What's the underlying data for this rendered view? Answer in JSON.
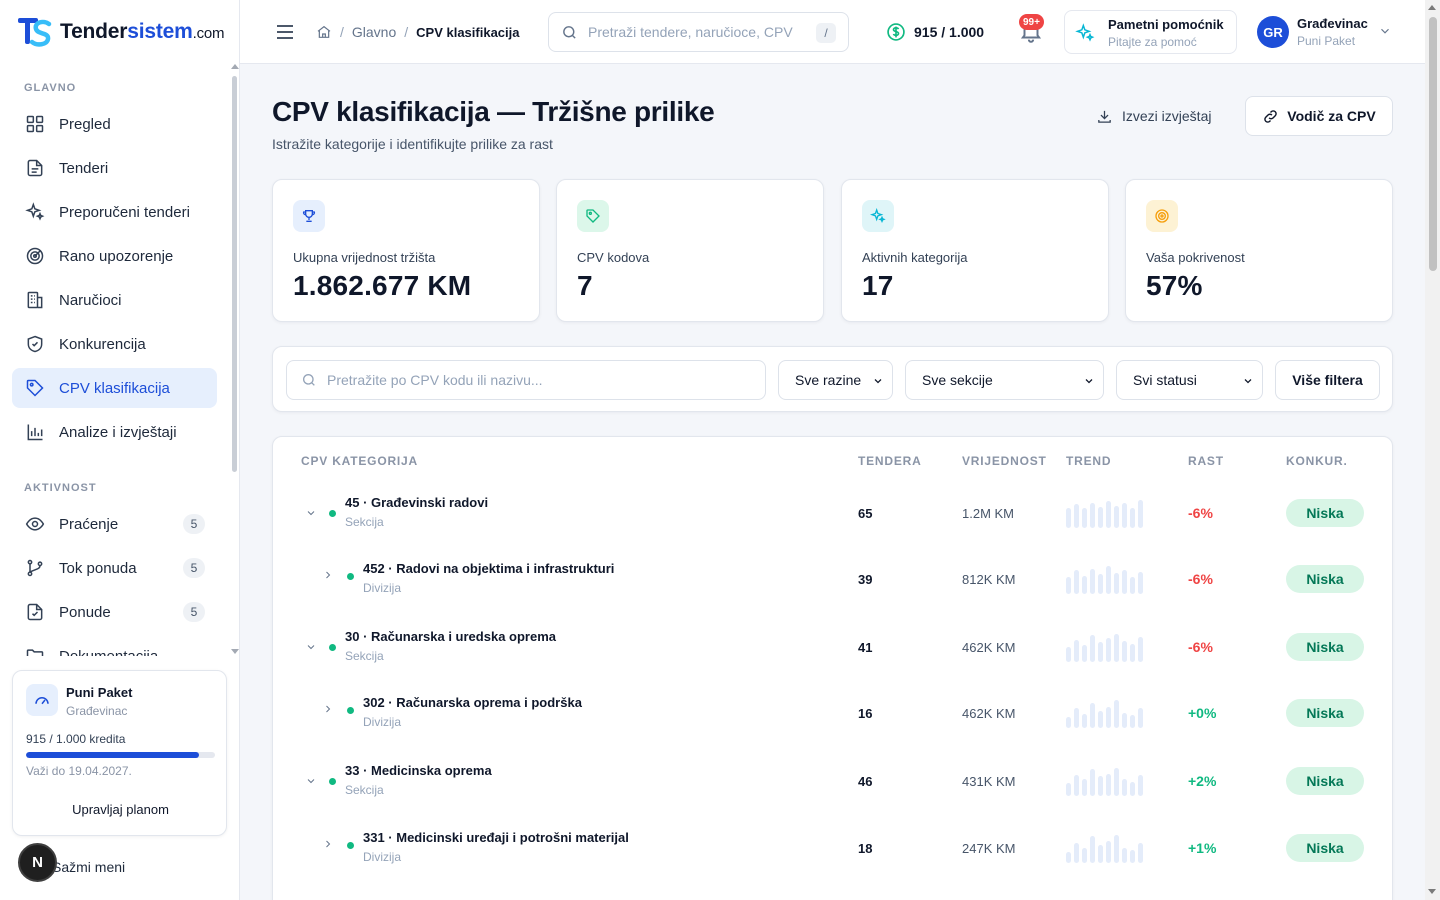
{
  "brand": {
    "name_main": "Tender",
    "name_accent": "sistem",
    "name_tld": ".com",
    "color": "#1d4ed8"
  },
  "sidebar": {
    "sections": [
      {
        "title": "GLAVNO"
      },
      {
        "title": "AKTIVNOST"
      }
    ],
    "main_items": [
      {
        "label": "Pregled",
        "icon": "grid-icon"
      },
      {
        "label": "Tenderi",
        "icon": "document-icon"
      },
      {
        "label": "Preporučeni tenderi",
        "icon": "sparkles-icon"
      },
      {
        "label": "Rano upozorenje",
        "icon": "radar-icon"
      },
      {
        "label": "Naručioci",
        "icon": "building-icon"
      },
      {
        "label": "Konkurencija",
        "icon": "shield-icon"
      },
      {
        "label": "CPV klasifikacija",
        "icon": "tag-icon",
        "active": true
      },
      {
        "label": "Analize i izvještaji",
        "icon": "bar-chart-icon"
      }
    ],
    "activity_items": [
      {
        "label": "Praćenje",
        "icon": "eye-icon",
        "count": "5"
      },
      {
        "label": "Tok ponuda",
        "icon": "git-branch-icon",
        "count": "5"
      },
      {
        "label": "Ponude",
        "icon": "file-check-icon",
        "count": "5"
      },
      {
        "label": "Dokumentacija",
        "icon": "folder-icon"
      }
    ],
    "plan": {
      "name": "Puni Paket",
      "company": "Građevinac",
      "credits_text": "915 / 1.000 kredita",
      "credits_fraction": 0.915,
      "valid_until": "Važi do 19.04.2027.",
      "manage_label": "Upravljaj planom"
    },
    "collapse_label": "Sažmi meni",
    "avatar_letter": "N"
  },
  "topbar": {
    "breadcrumb": {
      "home_icon": "home-icon",
      "parent": "Glavno",
      "separator": "/",
      "current": "CPV klasifikacija"
    },
    "search": {
      "placeholder": "Pretraži tendere, naručioce, CPV",
      "shortcut": "/"
    },
    "credits": "915 / 1.000",
    "notifications_badge": "99+",
    "assistant": {
      "title": "Pametni pomoćnik",
      "subtitle": "Pitajte za pomoć"
    },
    "user": {
      "initials": "GR",
      "name": "Građevinac",
      "plan": "Puni Paket"
    }
  },
  "page": {
    "title": "CPV klasifikacija — Tržišne prilike",
    "subtitle": "Istražite kategorije i identifikujte prilike za rast",
    "export_label": "Izvezi izvještaj",
    "guide_label": "Vodič za CPV"
  },
  "stats": [
    {
      "label": "Ukupna vrijednost tržišta",
      "value": "1.862.677 KM",
      "icon": "trophy-icon",
      "bg": "#e6effd",
      "fg": "#1d4ed8"
    },
    {
      "label": "CPV kodova",
      "value": "7",
      "icon": "tag-icon",
      "bg": "#dcf7ea",
      "fg": "#10b981"
    },
    {
      "label": "Aktivnih kategorija",
      "value": "17",
      "icon": "sparkles-icon",
      "bg": "#dff5f8",
      "fg": "#06b6d4"
    },
    {
      "label": "Vaša pokrivenost",
      "value": "57%",
      "icon": "target-icon",
      "bg": "#fdf2d4",
      "fg": "#f59e0b"
    }
  ],
  "filters": {
    "search_placeholder": "Pretražite po CPV kodu ili nazivu...",
    "level": "Sve razine",
    "section": "Sve sekcije",
    "status": "Svi statusi",
    "more_label": "Više filtera"
  },
  "table": {
    "headers": {
      "category": "CPV KATEGORIJA",
      "tenders": "TENDERA",
      "value": "VRIJEDNOST",
      "trend": "TREND",
      "growth": "RAST",
      "competition": "KONKUR."
    },
    "rows": [
      {
        "name": "45 · Građevinski radovi",
        "level": "Sekcija",
        "expanded": true,
        "indent": 0,
        "tenders": "65",
        "value": "1.2M KM",
        "trend": [
          0.72,
          0.85,
          0.7,
          0.9,
          0.75,
          0.95,
          0.8,
          0.88,
          0.7,
          1.0
        ],
        "growth": "-6%",
        "competition": "Niska"
      },
      {
        "name": "452 · Radovi na objektima i infrastrukturi",
        "level": "Divizija",
        "expanded": false,
        "indent": 1,
        "tenders": "39",
        "value": "812K KM",
        "trend": [
          0.6,
          0.85,
          0.65,
          0.9,
          0.7,
          1.0,
          0.75,
          0.85,
          0.6,
          0.8
        ],
        "growth": "-6%",
        "competition": "Niska"
      },
      {
        "name": "30 · Računarska i uredska oprema",
        "level": "Sekcija",
        "expanded": true,
        "indent": 0,
        "tenders": "41",
        "value": "462K KM",
        "trend": [
          0.55,
          0.8,
          0.6,
          0.95,
          0.7,
          0.85,
          1.0,
          0.75,
          0.65,
          0.9
        ],
        "growth": "-6%",
        "competition": "Niska"
      },
      {
        "name": "302 · Računarska oprema i podrška",
        "level": "Divizija",
        "expanded": false,
        "indent": 1,
        "tenders": "16",
        "value": "462K KM",
        "trend": [
          0.4,
          0.7,
          0.5,
          0.9,
          0.6,
          0.75,
          1.0,
          0.55,
          0.45,
          0.7
        ],
        "growth": "+0%",
        "competition": "Niska"
      },
      {
        "name": "33 · Medicinska oprema",
        "level": "Sekcija",
        "expanded": true,
        "indent": 0,
        "tenders": "46",
        "value": "431K KM",
        "trend": [
          0.45,
          0.75,
          0.6,
          0.95,
          0.7,
          0.8,
          1.0,
          0.6,
          0.5,
          0.75
        ],
        "growth": "+2%",
        "competition": "Niska"
      },
      {
        "name": "331 · Medicinski uređaji i potrošni materijal",
        "level": "Divizija",
        "expanded": false,
        "indent": 1,
        "tenders": "18",
        "value": "247K KM",
        "trend": [
          0.4,
          0.7,
          0.55,
          0.95,
          0.65,
          0.8,
          1.0,
          0.55,
          0.45,
          0.7
        ],
        "growth": "+1%",
        "competition": "Niska"
      }
    ]
  }
}
